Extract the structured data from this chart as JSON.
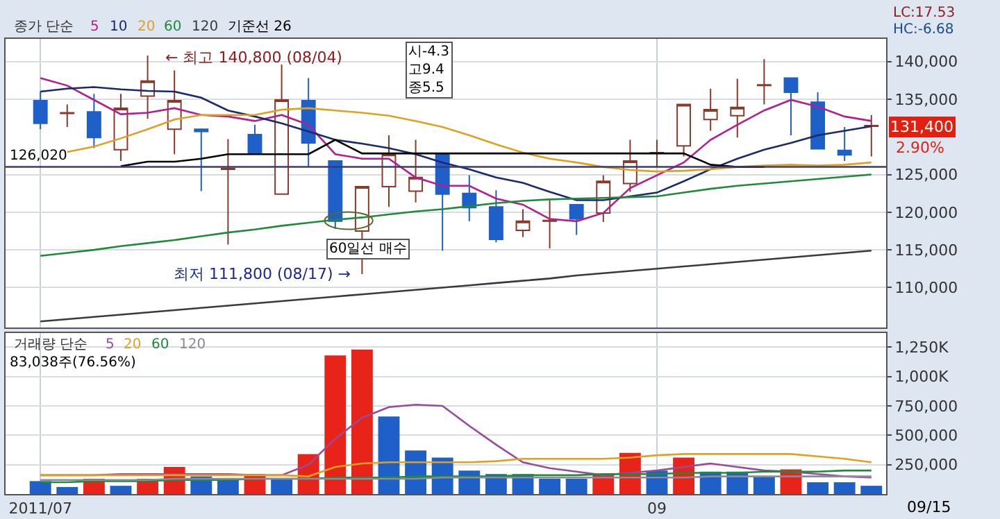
{
  "chart_data": [
    {
      "type": "candlestick",
      "categories": [
        "2011/07",
        null,
        null,
        null,
        null,
        null,
        null,
        null,
        null,
        null,
        null,
        null,
        null,
        null,
        null,
        null,
        null,
        null,
        null,
        null,
        null,
        null,
        null,
        "09",
        null,
        null,
        null,
        null,
        null,
        null,
        null,
        null
      ],
      "ohlc": [
        [
          134800,
          136000,
          131000,
          131800
        ],
        [
          133100,
          134300,
          131300,
          133200
        ],
        [
          133300,
          135700,
          128500,
          129900
        ],
        [
          128300,
          135700,
          126800,
          133800
        ],
        [
          135400,
          140800,
          132400,
          137400
        ],
        [
          131000,
          138800,
          127700,
          134800
        ],
        [
          131000,
          131000,
          122800,
          130700
        ],
        [
          125700,
          129700,
          115700,
          125800
        ],
        [
          130300,
          131600,
          127700,
          127800
        ],
        [
          122400,
          139600,
          122400,
          134900
        ],
        [
          134800,
          137800,
          126000,
          129200
        ],
        [
          126800,
          126800,
          117800,
          118800
        ],
        [
          117500,
          123400,
          111800,
          123400
        ],
        [
          123400,
          130200,
          120700,
          127700
        ],
        [
          122800,
          129600,
          121300,
          124600
        ],
        [
          127800,
          127800,
          114900,
          122400
        ],
        [
          122500,
          124900,
          118800,
          120600
        ],
        [
          120700,
          122900,
          116000,
          116400
        ],
        [
          117600,
          120400,
          116700,
          118800
        ],
        [
          118800,
          121600,
          115200,
          118900
        ],
        [
          121000,
          121000,
          117000,
          119100
        ],
        [
          119900,
          124900,
          118700,
          124100
        ],
        [
          123800,
          129600,
          122700,
          126800
        ],
        [
          127800,
          129600,
          126000,
          127900
        ],
        [
          128800,
          134300,
          127400,
          134300
        ],
        [
          132300,
          136400,
          130800,
          133600
        ],
        [
          132800,
          137700,
          129900,
          133900
        ],
        [
          136800,
          140300,
          134300,
          136900
        ],
        [
          137800,
          137800,
          130200,
          135900
        ],
        [
          134600,
          135900,
          128400,
          128400
        ],
        [
          128200,
          131300,
          126800,
          127600
        ],
        [
          131400,
          132900,
          127400,
          131500
        ]
      ],
      "series": [
        {
          "name": "5",
          "type": "line",
          "color": "#b0208f",
          "values": [
            137800,
            136800,
            134900,
            133000,
            133200,
            133800,
            132900,
            132700,
            132100,
            132900,
            131600,
            127700,
            127100,
            127100,
            124600,
            123500,
            123500,
            121800,
            121000,
            119100,
            118800,
            119900,
            123200,
            124900,
            126600,
            129600,
            131600,
            133500,
            134900,
            134000,
            132700,
            132100
          ]
        },
        {
          "name": "10",
          "type": "line",
          "color": "#1a2a6c",
          "values": [
            136000,
            136400,
            136600,
            136300,
            136100,
            136000,
            135200,
            133500,
            132700,
            131800,
            130700,
            129600,
            129100,
            128500,
            127700,
            126600,
            125700,
            124600,
            123900,
            122700,
            121600,
            121600,
            122100,
            122600,
            124100,
            125700,
            127100,
            128300,
            129200,
            130200,
            130800,
            131400
          ]
        },
        {
          "name": "20",
          "type": "line",
          "color": "#e0a020",
          "values": [
            null,
            128000,
            128700,
            129800,
            131000,
            132300,
            132900,
            132900,
            132900,
            133600,
            133800,
            133500,
            133200,
            132800,
            132100,
            131300,
            130200,
            129000,
            127900,
            127100,
            126600,
            126000,
            125600,
            125400,
            125500,
            125700,
            126000,
            126200,
            126300,
            126200,
            126300,
            126600
          ]
        },
        {
          "name": "60",
          "type": "line",
          "color": "#1e8a3a",
          "values": [
            114200,
            114600,
            115000,
            115500,
            115900,
            116300,
            116800,
            117300,
            117700,
            118200,
            118600,
            119000,
            119300,
            119700,
            120100,
            120400,
            120800,
            121200,
            121500,
            121700,
            121800,
            121900,
            122000,
            122100,
            122600,
            123100,
            123500,
            123800,
            124100,
            124400,
            124700,
            125000
          ]
        },
        {
          "name": "120",
          "type": "line",
          "color": "#3a3a3a",
          "values": [
            105500,
            105800,
            106100,
            106400,
            106700,
            107000,
            107300,
            107600,
            107900,
            108200,
            108500,
            108800,
            109100,
            109400,
            109700,
            110000,
            110300,
            110600,
            110900,
            111200,
            111600,
            111900,
            112200,
            112500,
            112800,
            113100,
            113400,
            113700,
            114000,
            114300,
            114600,
            114900
          ]
        },
        {
          "name": "기준선 26",
          "type": "line",
          "color": "#000000",
          "values": [
            null,
            null,
            null,
            126100,
            126700,
            126700,
            127100,
            127700,
            127700,
            127700,
            127700,
            129600,
            127800,
            127800,
            127800,
            127800,
            127800,
            127800,
            127800,
            127800,
            127800,
            127800,
            127800,
            127800,
            127800,
            126300,
            126000,
            126000,
            null,
            null,
            null,
            null
          ]
        }
      ],
      "ylim": [
        104700,
        143000
      ],
      "yticks": [
        {
          "value": 110000,
          "label": "110,000"
        },
        {
          "value": 115000,
          "label": "115,000"
        },
        {
          "value": 120000,
          "label": "120,000"
        },
        {
          "value": 125000,
          "label": "125,000"
        },
        {
          "value": 135000,
          "label": "135,000"
        },
        {
          "value": 140000,
          "label": "140,000"
        }
      ],
      "grid": true,
      "legend": "top left",
      "legend_title": "종가 단순",
      "tick_labels": "y",
      "ref_lines": [
        {
          "axis": "y",
          "value": 126020,
          "label": "126,020",
          "color": "#3a3a7a"
        }
      ],
      "annotations": [
        "LC:17.53",
        "HC:-6.68",
        "131,400",
        "2.90%",
        "시-4.3\n고9.4\n종5.5",
        "← 최고 140,800 (08/04)",
        "최저 111,800 (08/17) →",
        "60일선 매수"
      ]
    },
    {
      "type": "bar",
      "categories": [
        "2011/07",
        null,
        null,
        null,
        null,
        null,
        null,
        null,
        null,
        null,
        null,
        null,
        null,
        null,
        null,
        null,
        null,
        null,
        null,
        null,
        null,
        null,
        null,
        "09",
        null,
        null,
        null,
        null,
        null,
        null,
        null,
        null
      ],
      "series": [
        {
          "values": [
            110000,
            60000,
            130000,
            70000,
            130000,
            230000,
            150000,
            120000,
            170000,
            130000,
            340000,
            1180000,
            1230000,
            660000,
            370000,
            310000,
            200000,
            170000,
            170000,
            130000,
            130000,
            170000,
            350000,
            200000,
            310000,
            190000,
            190000,
            150000,
            210000,
            100000,
            100000,
            70000
          ],
          "colors": [
            "#1f5fc8",
            "#1f5fc8",
            "#e8231a",
            "#1f5fc8",
            "#e8231a",
            "#e8231a",
            "#1f5fc8",
            "#1f5fc8",
            "#e8231a",
            "#1f5fc8",
            "#e8231a",
            "#e8231a",
            "#e8231a",
            "#1f5fc8",
            "#1f5fc8",
            "#1f5fc8",
            "#1f5fc8",
            "#1f5fc8",
            "#1f5fc8",
            "#1f5fc8",
            "#1f5fc8",
            "#e8231a",
            "#e8231a",
            "#1f5fc8",
            "#e8231a",
            "#1f5fc8",
            "#1f5fc8",
            "#1f5fc8",
            "#e8231a",
            "#1f5fc8",
            "#1f5fc8",
            "#1f5fc8"
          ]
        },
        {
          "name": "5",
          "type": "line",
          "color": "#9a4a9a",
          "values": [
            160000,
            160000,
            160000,
            170000,
            170000,
            170000,
            170000,
            170000,
            160000,
            160000,
            250000,
            470000,
            650000,
            740000,
            760000,
            750000,
            580000,
            420000,
            270000,
            220000,
            190000,
            160000,
            180000,
            200000,
            230000,
            260000,
            230000,
            200000,
            190000,
            170000,
            150000,
            140000
          ]
        },
        {
          "name": "20",
          "type": "line",
          "color": "#e0a020",
          "values": [
            160000,
            160000,
            160000,
            160000,
            160000,
            160000,
            160000,
            160000,
            160000,
            160000,
            150000,
            230000,
            260000,
            270000,
            270000,
            270000,
            270000,
            280000,
            300000,
            300000,
            300000,
            300000,
            310000,
            330000,
            340000,
            340000,
            340000,
            340000,
            340000,
            320000,
            300000,
            270000
          ]
        },
        {
          "name": "60",
          "type": "line",
          "color": "#1e8a3a",
          "values": [
            100000,
            100000,
            110000,
            110000,
            110000,
            120000,
            120000,
            120000,
            130000,
            130000,
            130000,
            140000,
            140000,
            140000,
            150000,
            150000,
            150000,
            150000,
            160000,
            160000,
            160000,
            170000,
            170000,
            170000,
            180000,
            180000,
            180000,
            190000,
            190000,
            190000,
            200000,
            200000
          ]
        },
        {
          "name": "120",
          "type": "line",
          "color": "#8a8a9a",
          "values": [
            120000,
            120000,
            120000,
            120000,
            120000,
            130000,
            130000,
            130000,
            130000,
            130000,
            130000,
            130000,
            130000,
            130000,
            130000,
            140000,
            140000,
            140000,
            140000,
            140000,
            140000,
            140000,
            140000,
            140000,
            140000,
            150000,
            150000,
            150000,
            150000,
            150000,
            150000,
            150000
          ]
        }
      ],
      "ylim": [
        0,
        1370000
      ],
      "yticks": [
        {
          "value": 250000,
          "label": "250,000"
        },
        {
          "value": 500000,
          "label": "500,000"
        },
        {
          "value": 750000,
          "label": "750,000"
        },
        {
          "value": 1000000,
          "label": "1,000K"
        },
        {
          "value": 1250000,
          "label": "1,250K"
        }
      ],
      "grid": true,
      "legend": "top left",
      "legend_title": "거래량 단순",
      "annotations": [
        "83,038주(76.56%)",
        "09/15"
      ]
    }
  ]
}
